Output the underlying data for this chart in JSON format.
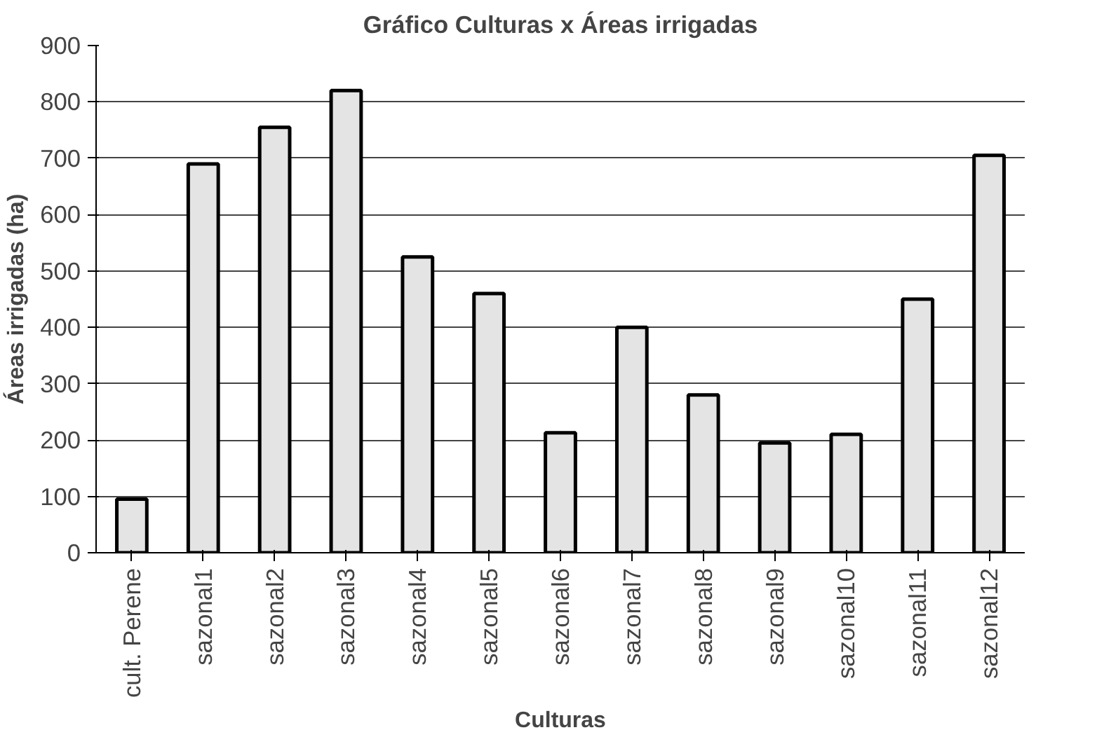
{
  "chart_data": {
    "type": "bar",
    "title": "Gráfico Culturas x Áreas irrigadas",
    "xlabel": "Culturas",
    "ylabel": "Áreas irrigadas (ha)",
    "categories": [
      "cult. Perene",
      "sazonal1",
      "sazonal2",
      "sazonal3",
      "sazonal4",
      "sazonal5",
      "sazonal6",
      "sazonal7",
      "sazonal8",
      "sazonal9",
      "sazonal10",
      "sazonal11",
      "sazonal12"
    ],
    "values": [
      95,
      690,
      755,
      820,
      525,
      460,
      213,
      400,
      280,
      195,
      210,
      450,
      705
    ],
    "color": "#e4e4e4",
    "ylim": [
      0,
      900
    ],
    "yticks": [
      0,
      100,
      200,
      300,
      400,
      500,
      600,
      700,
      800,
      900
    ],
    "grid": "y"
  }
}
